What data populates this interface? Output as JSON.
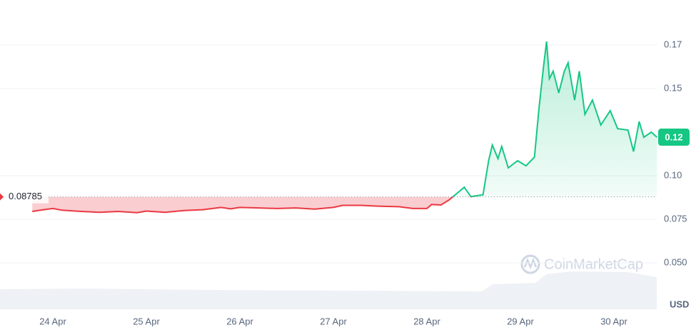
{
  "chart_data": {
    "type": "line",
    "x": [
      23.78,
      23.9,
      24.0,
      24.1,
      24.3,
      24.5,
      24.7,
      24.9,
      25.0,
      25.2,
      25.4,
      25.6,
      25.8,
      25.9,
      26.0,
      26.2,
      26.4,
      26.6,
      26.8,
      27.0,
      27.1,
      27.3,
      27.5,
      27.7,
      27.85,
      28.0,
      28.05,
      28.15,
      28.24,
      28.4,
      28.47,
      28.6,
      28.66,
      28.7,
      28.76,
      28.8,
      28.87,
      28.97,
      29.06,
      29.15,
      29.2,
      29.25,
      29.28,
      29.31,
      29.35,
      29.41,
      29.47,
      29.51,
      29.58,
      29.63,
      29.69,
      29.77,
      29.86,
      29.96,
      30.04,
      30.15,
      30.21,
      30.27,
      30.32,
      30.4,
      30.46
    ],
    "values": [
      0.0795,
      0.0805,
      0.0812,
      0.0802,
      0.0795,
      0.079,
      0.0795,
      0.0788,
      0.0797,
      0.079,
      0.08,
      0.0805,
      0.0818,
      0.081,
      0.0818,
      0.0815,
      0.0812,
      0.0815,
      0.0808,
      0.0818,
      0.083,
      0.083,
      0.0825,
      0.0822,
      0.0812,
      0.0812,
      0.0835,
      0.0832,
      0.0862,
      0.0934,
      0.088,
      0.089,
      0.1086,
      0.1176,
      0.1098,
      0.1168,
      0.1045,
      0.1086,
      0.1057,
      0.1107,
      0.1393,
      0.164,
      0.177,
      0.1557,
      0.16,
      0.1475,
      0.16,
      0.1648,
      0.1434,
      0.16,
      0.1352,
      0.1434,
      0.1291,
      0.1373,
      0.127,
      0.1262,
      0.1139,
      0.1311,
      0.1221,
      0.125,
      0.1221
    ],
    "reference_price": 0.08785,
    "current_price": {
      "value": 0.1221,
      "label": "0.12"
    },
    "up_color": "#16c784",
    "down_color": "#ea3943",
    "xlim": [
      23.435,
      30.458
    ],
    "xticks": [
      {
        "value": 24,
        "label": "24 Apr"
      },
      {
        "value": 25,
        "label": "25 Apr"
      },
      {
        "value": 26,
        "label": "26 Apr"
      },
      {
        "value": 27,
        "label": "27 Apr"
      },
      {
        "value": 28,
        "label": "28 Apr"
      },
      {
        "value": 29,
        "label": "29 Apr"
      },
      {
        "value": 30,
        "label": "30 Apr"
      }
    ],
    "ylim": [
      0.0246,
      0.2008
    ],
    "yticks": [
      {
        "value": 0.175,
        "label": "0.17"
      },
      0.15,
      {
        "value": 0.1,
        "label": "0.10"
      },
      0.075,
      {
        "value": 0.05,
        "label": "0.050"
      }
    ],
    "y_unit": "USD",
    "watermark": "CoinMarketCap",
    "grid": true
  }
}
